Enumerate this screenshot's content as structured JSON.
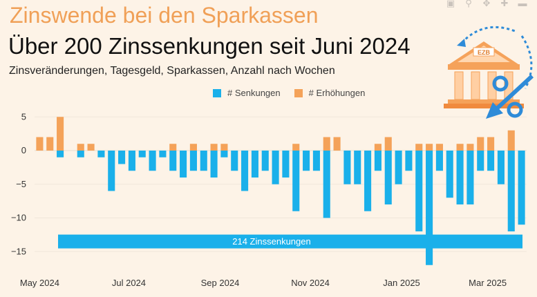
{
  "header": {
    "title": "Zinswende bei den Sparkassen",
    "subtitle": "Über 200 Zinssenkungen seit Juni 2024",
    "caption": "Zinsveränderungen, Tagesgeld, Sparkassen, Anzahl nach Wochen"
  },
  "icons": {
    "modebar": [
      "camera-icon",
      "zoom-icon",
      "pan-icon",
      "zoom-in-icon",
      "zoom-out-icon"
    ],
    "bank": "bank-ezb-icon",
    "bank_label": "EZB",
    "percent": "percent-icon"
  },
  "colors": {
    "background": "#fdf3e7",
    "senkungen": "#1ab0ea",
    "erhoehungen": "#f4a259",
    "title": "#f0a057"
  },
  "chart_data": {
    "type": "bar",
    "barmode": "relative",
    "x_start_label": "May 2024",
    "xticks": [
      {
        "label": "May 2024",
        "week": 0
      },
      {
        "label": "Jul 2024",
        "week": 8.7
      },
      {
        "label": "Sep 2024",
        "week": 17.6
      },
      {
        "label": "Nov 2024",
        "week": 26.4
      },
      {
        "label": "Jan 2025",
        "week": 35.3
      },
      {
        "label": "Mar 2025",
        "week": 43.7
      }
    ],
    "yticks": [
      5,
      0,
      -5,
      -10,
      -15
    ],
    "ylim": [
      -17.5,
      6
    ],
    "legend": {
      "position": "top",
      "entries": [
        "# Senkungen",
        "# Erhöhungen"
      ]
    },
    "series": [
      {
        "name": "# Senkungen",
        "color": "#1ab0ea",
        "values": [
          0,
          0,
          -1,
          0,
          -1,
          0,
          -1,
          -6,
          -2,
          -3,
          -1,
          -3,
          -1,
          -3,
          -4,
          -3,
          -3,
          -4,
          -1,
          -3,
          -6,
          -4,
          -3,
          -5,
          -4,
          -9,
          -3,
          -3,
          -10,
          0,
          -5,
          -5,
          -9,
          -3,
          -8,
          -5,
          -3,
          -12,
          -17,
          -3,
          -7,
          -8,
          -8,
          -3,
          -3,
          -5,
          -12,
          -11
        ]
      },
      {
        "name": "# Erhöhungen",
        "color": "#f4a259",
        "values": [
          2,
          2,
          5,
          0,
          1,
          1,
          0,
          0,
          0,
          0,
          0,
          0,
          0,
          1,
          0,
          1,
          0,
          1,
          1,
          0,
          0,
          0,
          0,
          0,
          0,
          1,
          0,
          0,
          2,
          2,
          0,
          0,
          0,
          1,
          2,
          0,
          0,
          1,
          1,
          1,
          0,
          1,
          1,
          2,
          2,
          0,
          3,
          0
        ]
      }
    ],
    "annotation": {
      "text": "214 Zinssenkungen",
      "y": -13.5
    }
  }
}
